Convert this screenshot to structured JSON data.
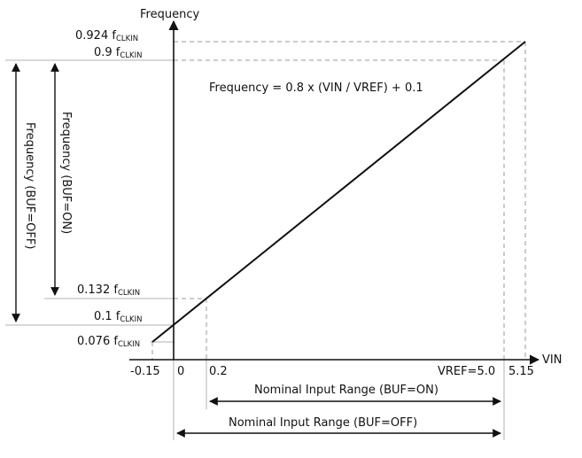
{
  "axes": {
    "y_title": "Frequency",
    "x_title": "VIN"
  },
  "y_labels": {
    "y0924": {
      "main": "0.924 f",
      "sub": "CLKIN"
    },
    "y09": {
      "main": "0.9 f",
      "sub": "CLKIN"
    },
    "y0132": {
      "main": "0.132 f",
      "sub": "CLKIN"
    },
    "y01": {
      "main": "0.1 f",
      "sub": "CLKIN"
    },
    "y0076": {
      "main": "0.076 f",
      "sub": "CLKIN"
    }
  },
  "x_labels": {
    "neg015": "-0.15",
    "zero": "0",
    "p02": "0.2",
    "vref": "VREF=5.0",
    "p515": "5.15"
  },
  "equation": "Frequency = 0.8 x (VIN / VREF) + 0.1",
  "ranges": {
    "buf_off_vertical": "Frequency (BUF=OFF)",
    "buf_on_vertical": "Frequency (BUF=ON)",
    "nominal_on": "Nominal Input Range (BUF=ON)",
    "nominal_off": "Nominal Input Range (BUF=OFF)"
  },
  "colors": {
    "line": "#111111",
    "dashed": "#9a9a9a",
    "guide": "#b0b0b0"
  }
}
